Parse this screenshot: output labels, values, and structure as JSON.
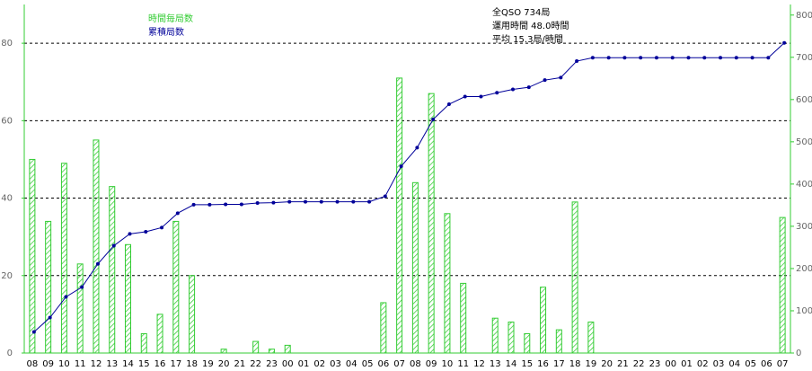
{
  "chart_data": {
    "type": "bar",
    "categories": [
      "08",
      "09",
      "10",
      "11",
      "12",
      "13",
      "14",
      "15",
      "16",
      "17",
      "18",
      "19",
      "20",
      "21",
      "22",
      "23",
      "00",
      "01",
      "02",
      "03",
      "04",
      "05",
      "06",
      "07",
      "08",
      "09",
      "10",
      "11",
      "12",
      "13",
      "14",
      "15",
      "16",
      "17",
      "18",
      "19",
      "20",
      "21",
      "22",
      "23",
      "00",
      "01",
      "02",
      "03",
      "04",
      "05",
      "06",
      "07"
    ],
    "series": [
      {
        "name": "時間毎局数",
        "color": "#33cc33",
        "type": "bar",
        "values": [
          50,
          34,
          49,
          23,
          55,
          43,
          28,
          5,
          10,
          34,
          20,
          0,
          1,
          0,
          3,
          1,
          2,
          0,
          0,
          0,
          0,
          0,
          13,
          71,
          44,
          67,
          36,
          18,
          0,
          9,
          8,
          5,
          17,
          6,
          39,
          8,
          0,
          0,
          0,
          0,
          0,
          0,
          0,
          0,
          0,
          0,
          0,
          35
        ]
      },
      {
        "name": "累積局数",
        "color": "#000099",
        "type": "line",
        "axis": "y2",
        "values": [
          50,
          84,
          133,
          156,
          211,
          254,
          282,
          287,
          297,
          331,
          351,
          351,
          352,
          352,
          355,
          356,
          358,
          358,
          358,
          358,
          358,
          358,
          371,
          442,
          486,
          553,
          589,
          607,
          607,
          616,
          624,
          629,
          646,
          652,
          691,
          699,
          699,
          699,
          699,
          699,
          699,
          699,
          699,
          699,
          699,
          699,
          699,
          734
        ]
      }
    ],
    "ylim": [
      0,
      90
    ],
    "yticks": [
      0,
      20,
      40,
      60,
      80
    ],
    "y2lim": [
      0,
      825
    ],
    "y2ticks": [
      0,
      100,
      200,
      300,
      400,
      500,
      600,
      700,
      800
    ],
    "grid": true,
    "annotations": [
      "全QSO 734局",
      "運用時間 48.0時間",
      "平均 15.3局/時間"
    ]
  }
}
